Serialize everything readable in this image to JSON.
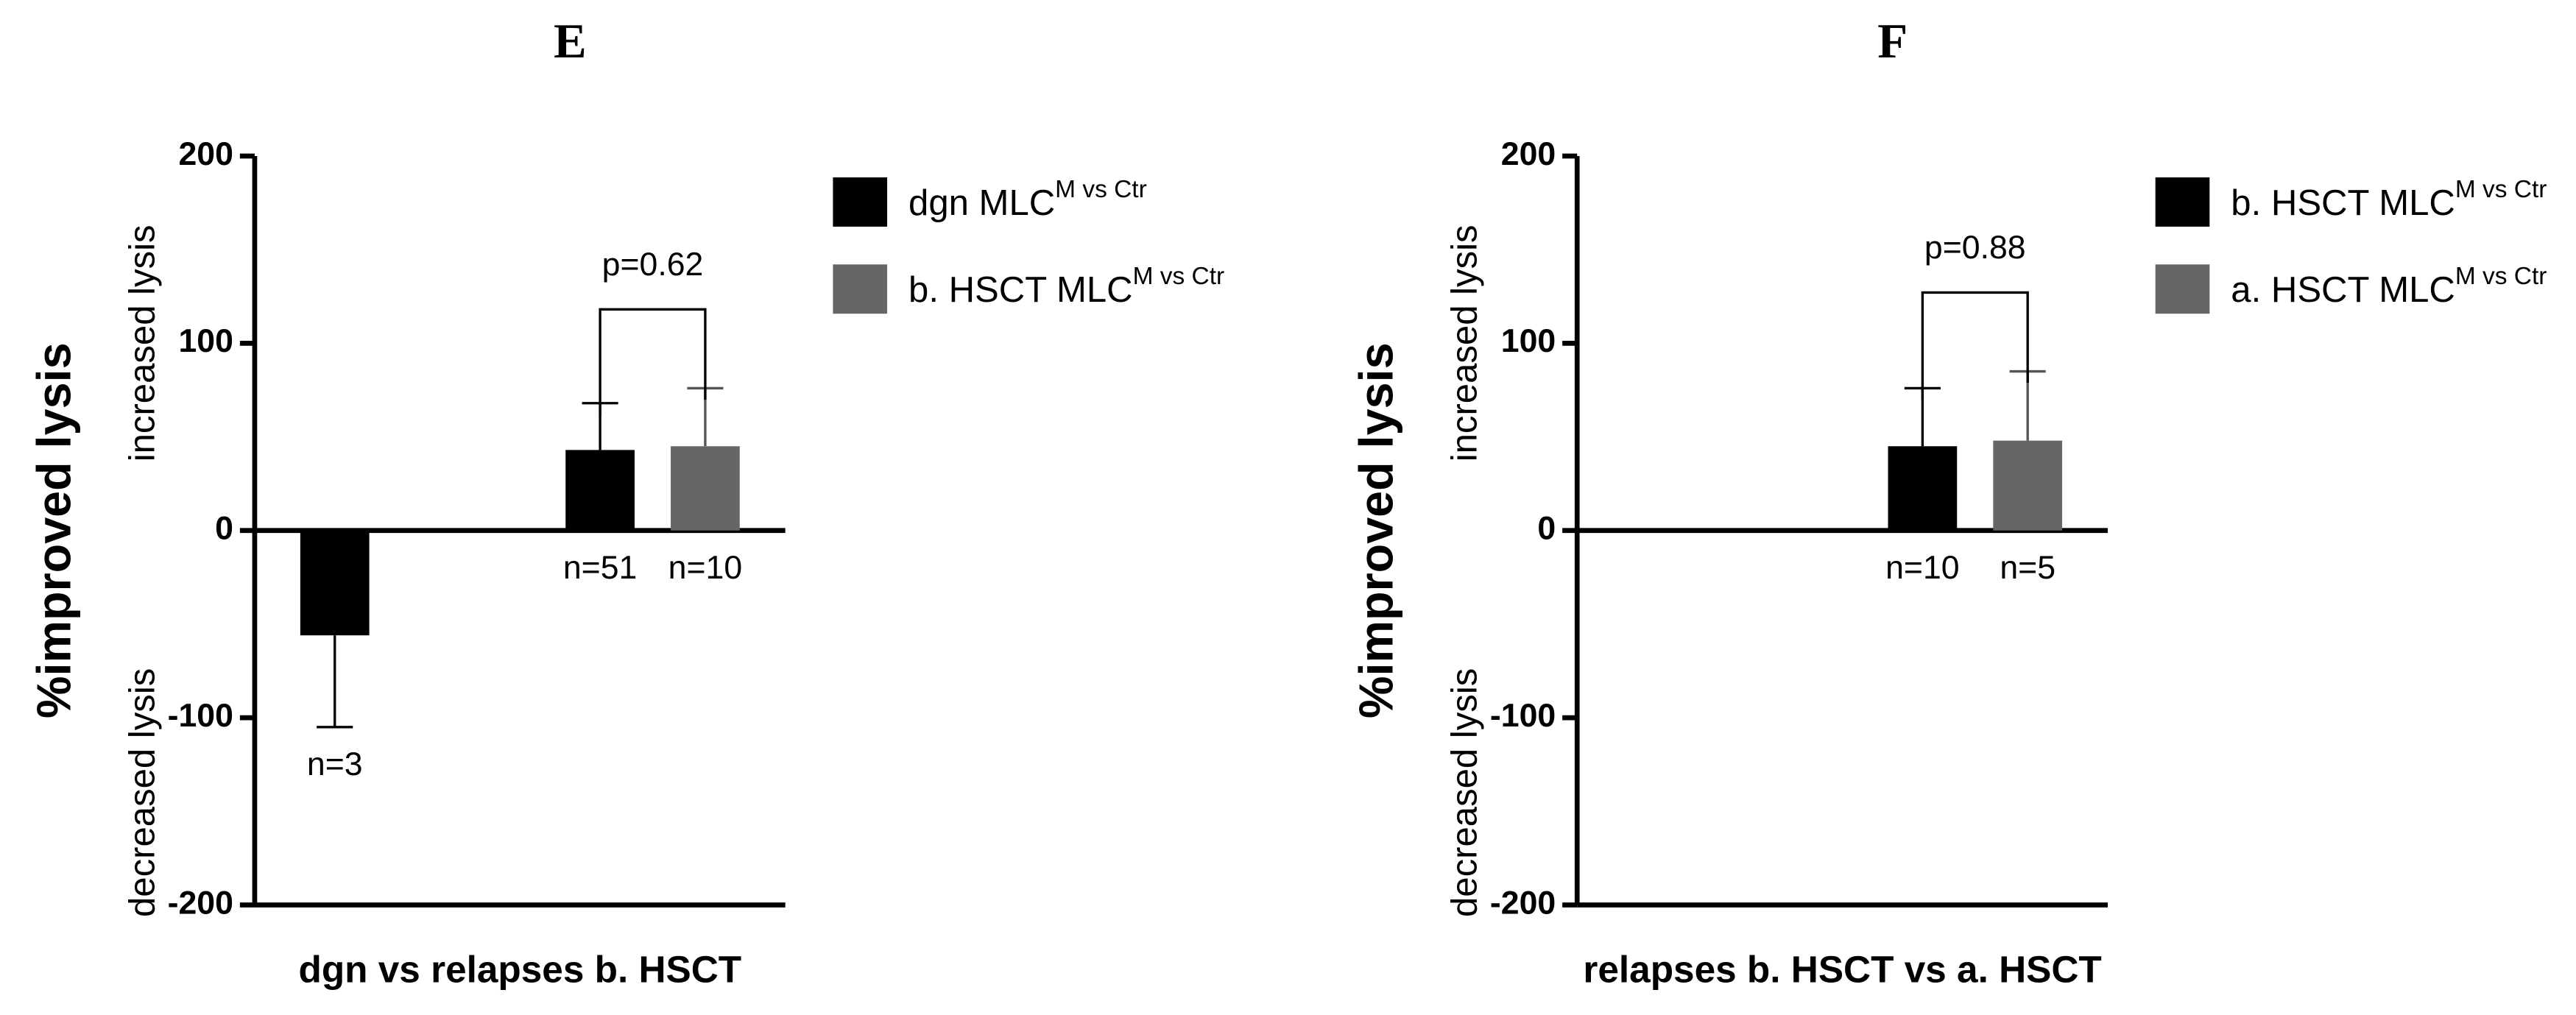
{
  "chart_data": [
    {
      "type": "bar",
      "title": "E",
      "xlabel": "dgn vs relapses b. HSCT",
      "ylabel": "%improved lysis",
      "annotations": [
        "increased lysis",
        "decreased lysis"
      ],
      "categories": [
        null,
        null
      ],
      "series": [
        {
          "name": "dgn MLC",
          "name_superscript": "M vs Ctr",
          "color": "#000000",
          "values": [
            -56,
            43
          ],
          "errors": [
            49,
            25
          ],
          "n_labels": [
            "n=3",
            "n=51"
          ]
        },
        {
          "name": "b. HSCT MLC",
          "name_superscript": "M vs Ctr",
          "color": "#666666",
          "values": [
            null,
            45
          ],
          "errors": [
            null,
            31
          ],
          "n_labels": [
            null,
            "n=10"
          ]
        }
      ],
      "p_value": "p=0.62",
      "ylim": [
        -200,
        200
      ],
      "yticks": [
        -200,
        -100,
        0,
        100,
        200
      ]
    },
    {
      "type": "bar",
      "title": "F",
      "xlabel": "relapses b. HSCT vs a. HSCT",
      "ylabel": "%improved lysis",
      "annotations": [
        "increased lysis",
        "decreased lysis"
      ],
      "categories": [
        null,
        null
      ],
      "series": [
        {
          "name": "b. HSCT  MLC",
          "name_superscript": "M vs Ctr",
          "color": "#000000",
          "values": [
            null,
            45
          ],
          "errors": [
            null,
            31
          ],
          "n_labels": [
            null,
            "n=10"
          ]
        },
        {
          "name": "a. HSCT MLC",
          "name_superscript": "M vs Ctr",
          "color": "#666666",
          "values": [
            null,
            48
          ],
          "errors": [
            null,
            37
          ],
          "n_labels": [
            null,
            "n=5"
          ]
        }
      ],
      "p_value": "p=0.88",
      "ylim": [
        -200,
        200
      ],
      "yticks": [
        -200,
        -100,
        0,
        100,
        200
      ]
    }
  ]
}
